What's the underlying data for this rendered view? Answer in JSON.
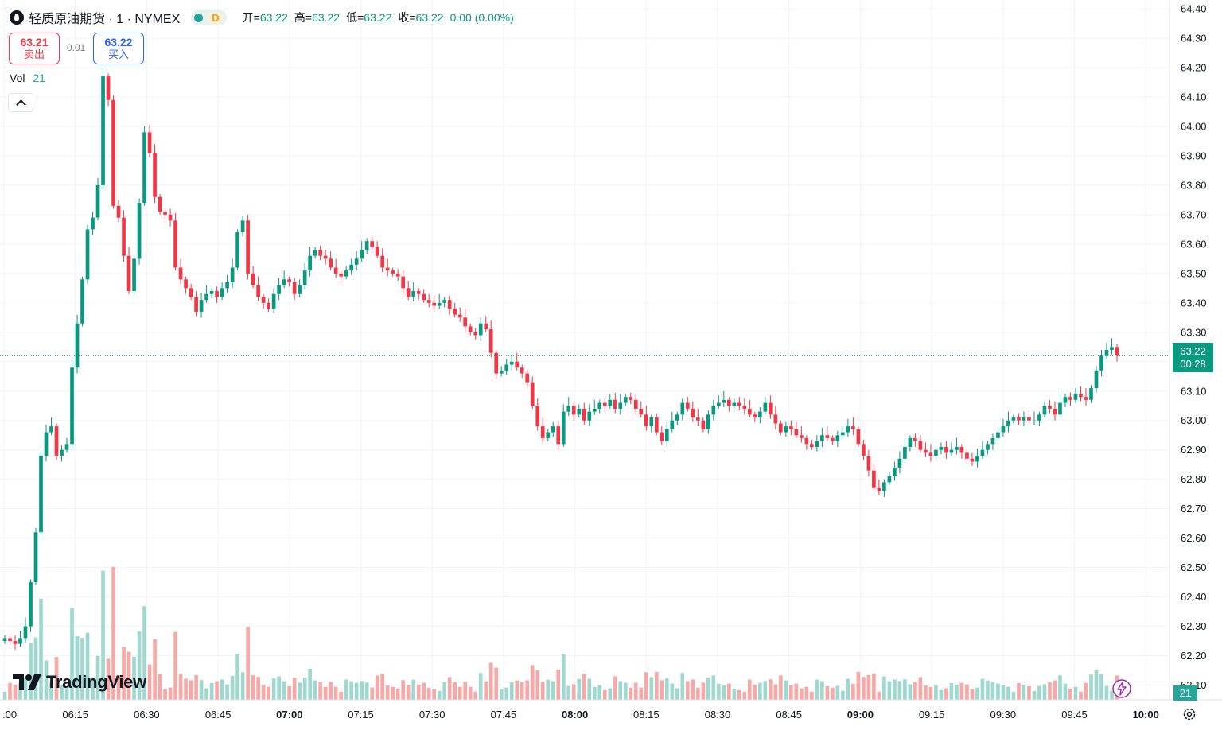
{
  "legend": {
    "title": "轻质原油期货 · 1 · NYMEX",
    "interval_badge": "D",
    "ohlc": [
      {
        "label": "开=",
        "value": "63.22"
      },
      {
        "label": "高=",
        "value": "63.22"
      },
      {
        "label": "低=",
        "value": "63.22"
      },
      {
        "label": "收=",
        "value": "63.22"
      }
    ],
    "change": "0.00 (0.00%)"
  },
  "trade": {
    "sell_price": "63.21",
    "sell_label": "卖出",
    "spread": "0.01",
    "buy_price": "63.22",
    "buy_label": "买入"
  },
  "volume_legend": {
    "label": "Vol",
    "value": "21"
  },
  "last_price": {
    "price": "63.22",
    "countdown": "00:28"
  },
  "last_volume": "21",
  "watermark": "TradingView",
  "colors": {
    "up": "#089981",
    "down": "#f23645",
    "up_vol": "#9fd8cf",
    "down_vol": "#f7a9a7",
    "grid": "#f0f3fa",
    "text": "#131722"
  },
  "chart_data": {
    "type": "candlestick",
    "title": "轻质原油期货 · 1 · NYMEX",
    "y_axis": {
      "min": 62.05,
      "max": 64.43,
      "ticks": [
        "64.40",
        "64.30",
        "64.20",
        "64.10",
        "64.00",
        "63.90",
        "63.80",
        "63.70",
        "63.60",
        "63.50",
        "63.40",
        "63.30",
        "63.20",
        "63.10",
        "63.00",
        "62.90",
        "62.80",
        "62.70",
        "62.60",
        "62.50",
        "62.40",
        "62.30",
        "62.20",
        "62.10"
      ]
    },
    "x_axis": {
      "ticks": [
        ":00",
        "06:15",
        "06:30",
        "06:45",
        "07:00",
        "07:15",
        "07:30",
        "07:45",
        "08:00",
        "08:15",
        "08:30",
        "08:45",
        "09:00",
        "09:15",
        "09:30",
        "09:45",
        "10:00"
      ],
      "bold_ticks": [
        "07:00",
        "08:00",
        "09:00",
        "10:00"
      ]
    },
    "grid": true,
    "current_price_line": 63.22,
    "close_series": [
      62.26,
      62.25,
      62.24,
      62.26,
      62.3,
      62.45,
      62.62,
      62.88,
      62.96,
      62.98,
      62.88,
      62.9,
      62.92,
      63.18,
      63.33,
      63.48,
      63.65,
      63.69,
      63.8,
      64.17,
      64.09,
      63.73,
      63.69,
      63.56,
      63.44,
      63.55,
      63.74,
      63.98,
      63.91,
      63.76,
      63.71,
      63.7,
      63.68,
      63.52,
      63.48,
      63.45,
      63.42,
      63.37,
      63.41,
      63.43,
      63.44,
      63.42,
      63.45,
      63.47,
      63.52,
      63.64,
      63.68,
      63.5,
      63.46,
      63.42,
      63.4,
      63.38,
      63.43,
      63.46,
      63.48,
      63.47,
      63.43,
      63.46,
      63.51,
      63.56,
      63.58,
      63.56,
      63.55,
      63.52,
      63.5,
      63.49,
      63.51,
      63.53,
      63.55,
      63.58,
      63.61,
      63.59,
      63.56,
      63.52,
      63.51,
      63.5,
      63.49,
      63.45,
      63.42,
      63.44,
      63.43,
      63.41,
      63.4,
      63.39,
      63.4,
      63.41,
      63.38,
      63.36,
      63.35,
      63.32,
      63.3,
      63.29,
      63.33,
      63.31,
      63.23,
      63.16,
      63.17,
      63.19,
      63.2,
      63.18,
      63.16,
      63.13,
      63.05,
      62.98,
      62.94,
      62.96,
      62.98,
      62.92,
      63.03,
      63.05,
      63.02,
      63.04,
      63.0,
      63.03,
      63.04,
      63.06,
      63.05,
      63.07,
      63.04,
      63.06,
      63.08,
      63.07,
      63.04,
      63.02,
      62.98,
      63.01,
      62.96,
      62.93,
      62.97,
      63.0,
      63.02,
      63.06,
      63.04,
      63.01,
      63.0,
      62.97,
      63.02,
      63.05,
      63.06,
      63.07,
      63.05,
      63.06,
      63.05,
      63.04,
      63.02,
      63.01,
      63.03,
      63.06,
      63.02,
      62.99,
      62.96,
      62.98,
      62.97,
      62.95,
      62.94,
      62.92,
      62.91,
      62.93,
      62.95,
      62.94,
      62.93,
      62.95,
      62.96,
      62.98,
      62.97,
      62.92,
      62.88,
      62.83,
      62.77,
      62.76,
      62.79,
      62.81,
      62.84,
      62.87,
      62.91,
      62.94,
      62.93,
      62.9,
      62.89,
      62.88,
      62.9,
      62.91,
      62.89,
      62.9,
      62.91,
      62.89,
      62.87,
      62.86,
      62.88,
      62.9,
      62.92,
      62.94,
      62.96,
      62.98,
      63.0,
      63.01,
      63.0,
      63.01,
      63.0,
      63.0,
      63.02,
      63.05,
      63.04,
      63.02,
      63.06,
      63.08,
      63.07,
      63.09,
      63.08,
      63.07,
      63.11,
      63.17,
      63.22,
      63.24,
      63.25,
      63.22
    ]
  }
}
